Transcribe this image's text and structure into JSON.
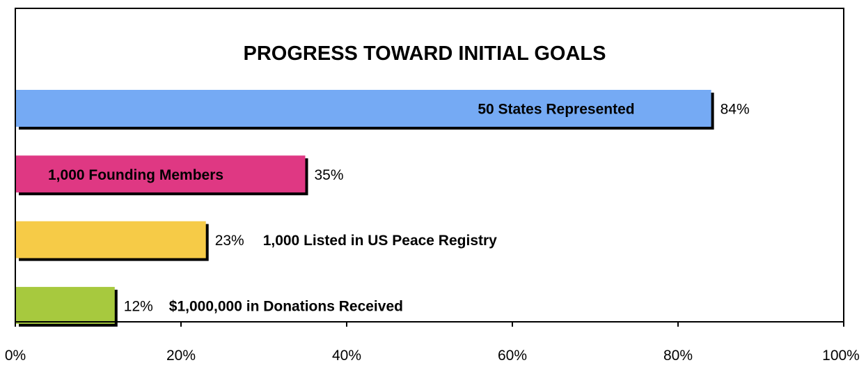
{
  "chart_data": {
    "type": "bar",
    "orientation": "horizontal",
    "title": "PROGRESS TOWARD INITIAL GOALS",
    "xlim": [
      0,
      100
    ],
    "xticks": [
      "0%",
      "20%",
      "40%",
      "60%",
      "80%",
      "100%"
    ],
    "grid": false,
    "categories": [
      "50 States Represented",
      "1,000 Founding Members",
      "1,000 Listed in US Peace Registry",
      "$1,000,000 in Donations Received"
    ],
    "values": [
      84,
      35,
      23,
      12
    ],
    "value_labels": [
      "84%",
      "35%",
      "23%",
      "12%"
    ],
    "colors": [
      "#75aaf4",
      "#df3883",
      "#f6cb47",
      "#a7c93e"
    ],
    "category_label_position": [
      "inside",
      "inside",
      "outside",
      "outside"
    ]
  }
}
